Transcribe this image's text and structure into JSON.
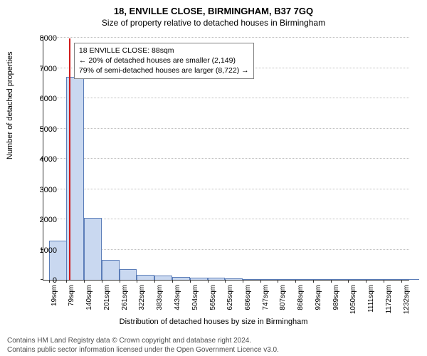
{
  "title": "18, ENVILLE CLOSE, BIRMINGHAM, B37 7GQ",
  "subtitle": "Size of property relative to detached houses in Birmingham",
  "chart": {
    "type": "histogram",
    "ylabel": "Number of detached properties",
    "xlabel": "Distribution of detached houses by size in Birmingham",
    "ylim": [
      0,
      8000
    ],
    "ytick_step": 1000,
    "xlim": [
      0,
      1262
    ],
    "bar_fill": "#c9d8f0",
    "bar_stroke": "#5b7db8",
    "background_color": "#ffffff",
    "grid_color": "#bfbfbf",
    "axis_color": "#333333",
    "bin_width_sqm": 61,
    "bins_start_sqm": [
      19,
      79,
      140,
      201,
      261,
      322,
      383,
      443,
      504,
      565,
      625,
      686,
      747,
      807,
      868,
      929,
      989,
      1050,
      1111,
      1172,
      1232
    ],
    "counts": [
      1300,
      6700,
      2050,
      660,
      350,
      170,
      130,
      100,
      75,
      60,
      40,
      30,
      20,
      15,
      10,
      8,
      5,
      5,
      3,
      3,
      2
    ],
    "xtick_labels": [
      "19sqm",
      "79sqm",
      "140sqm",
      "201sqm",
      "261sqm",
      "322sqm",
      "383sqm",
      "443sqm",
      "504sqm",
      "565sqm",
      "625sqm",
      "686sqm",
      "747sqm",
      "807sqm",
      "868sqm",
      "929sqm",
      "989sqm",
      "1050sqm",
      "1111sqm",
      "1172sqm",
      "1232sqm"
    ],
    "marker": {
      "value_sqm": 88,
      "color": "#d01c1c"
    }
  },
  "annotation": {
    "line1": "18 ENVILLE CLOSE: 88sqm",
    "line2": "← 20% of detached houses are smaller (2,149)",
    "line3": "79% of semi-detached houses are larger (8,722) →",
    "border_color": "#808080",
    "bg_color": "#ffffff",
    "fontsize": 10.5
  },
  "footer": {
    "line1": "Contains HM Land Registry data © Crown copyright and database right 2024.",
    "line2": "Contains public sector information licensed under the Open Government Licence v3.0.",
    "color": "#4d4d4d"
  }
}
